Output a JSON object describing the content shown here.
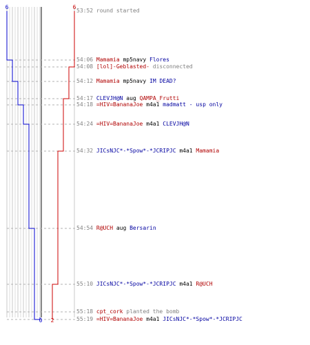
{
  "teams": {
    "blue": {
      "color": "#0000cc",
      "start_count": "6",
      "end_count": "0"
    },
    "red": {
      "color": "#cc0000",
      "start_count": "6",
      "end_count": "2"
    }
  },
  "log": [
    {
      "time": "53:52",
      "parts": [
        {
          "text": "round started",
          "style": "msg"
        }
      ]
    },
    {
      "time": "54:06",
      "parts": [
        {
          "text": "Mamamia",
          "style": "red"
        },
        {
          "text": " mp5navy ",
          "style": "plain"
        },
        {
          "text": "Flores",
          "style": "blue"
        }
      ]
    },
    {
      "time": "54:08",
      "parts": [
        {
          "text": "[lol]-Geblasted-",
          "style": "red"
        },
        {
          "text": " disconnected",
          "style": "msg"
        }
      ]
    },
    {
      "time": "54:12",
      "parts": [
        {
          "text": "Mamamia",
          "style": "red"
        },
        {
          "text": " mp5navy ",
          "style": "plain"
        },
        {
          "text": "IM DEAD?",
          "style": "blue"
        }
      ]
    },
    {
      "time": "54:17",
      "parts": [
        {
          "text": "CLEVJH@N",
          "style": "blue"
        },
        {
          "text": " aug ",
          "style": "plain"
        },
        {
          "text": "QAMPA_Frutti",
          "style": "red"
        }
      ]
    },
    {
      "time": "54:18",
      "parts": [
        {
          "text": "=HIV=BananaJoe",
          "style": "red"
        },
        {
          "text": " m4a1 ",
          "style": "plain"
        },
        {
          "text": "madmatt - usp only",
          "style": "blue"
        }
      ]
    },
    {
      "time": "54:24",
      "parts": [
        {
          "text": "=HIV=BananaJoe",
          "style": "red"
        },
        {
          "text": " m4a1 ",
          "style": "plain"
        },
        {
          "text": "CLEVJH@N",
          "style": "blue"
        }
      ]
    },
    {
      "time": "54:32",
      "parts": [
        {
          "text": "JICsNJC*-*Spow*-*JCRIPJC",
          "style": "blue"
        },
        {
          "text": " m4a1 ",
          "style": "plain"
        },
        {
          "text": "Mamamia",
          "style": "red"
        }
      ]
    },
    {
      "time": "54:54",
      "parts": [
        {
          "text": "R@UCH",
          "style": "red"
        },
        {
          "text": " aug ",
          "style": "plain"
        },
        {
          "text": "Bersarin",
          "style": "blue"
        }
      ]
    },
    {
      "time": "55:10",
      "parts": [
        {
          "text": "JICsNJC*-*Spow*-*JCRIPJC",
          "style": "blue"
        },
        {
          "text": " m4a1 ",
          "style": "plain"
        },
        {
          "text": "R@UCH",
          "style": "red"
        }
      ]
    },
    {
      "time": "55:18",
      "parts": [
        {
          "text": "cpt_cork",
          "style": "red"
        },
        {
          "text": " planted the bomb",
          "style": "msg"
        }
      ]
    },
    {
      "time": "55:19",
      "parts": [
        {
          "text": "=HIV=BananaJoe",
          "style": "red"
        },
        {
          "text": " m4a1 ",
          "style": "plain"
        },
        {
          "text": "JICsNJC*-*Spow*-*JCRIPJC",
          "style": "blue"
        }
      ]
    }
  ],
  "chart_data": {
    "type": "line",
    "x": [
      "53:52",
      "54:06",
      "54:08",
      "54:12",
      "54:17",
      "54:18",
      "54:24",
      "54:32",
      "54:54",
      "55:10",
      "55:18",
      "55:19"
    ],
    "series": [
      {
        "values": [
          6,
          5,
          5,
          4,
          4,
          3,
          2,
          2,
          1,
          1,
          1,
          0
        ]
      },
      {
        "values": [
          6,
          6,
          5,
          5,
          4,
          4,
          4,
          3,
          3,
          2,
          2,
          2
        ]
      }
    ],
    "ylim": [
      0,
      6
    ],
    "grid": true
  }
}
